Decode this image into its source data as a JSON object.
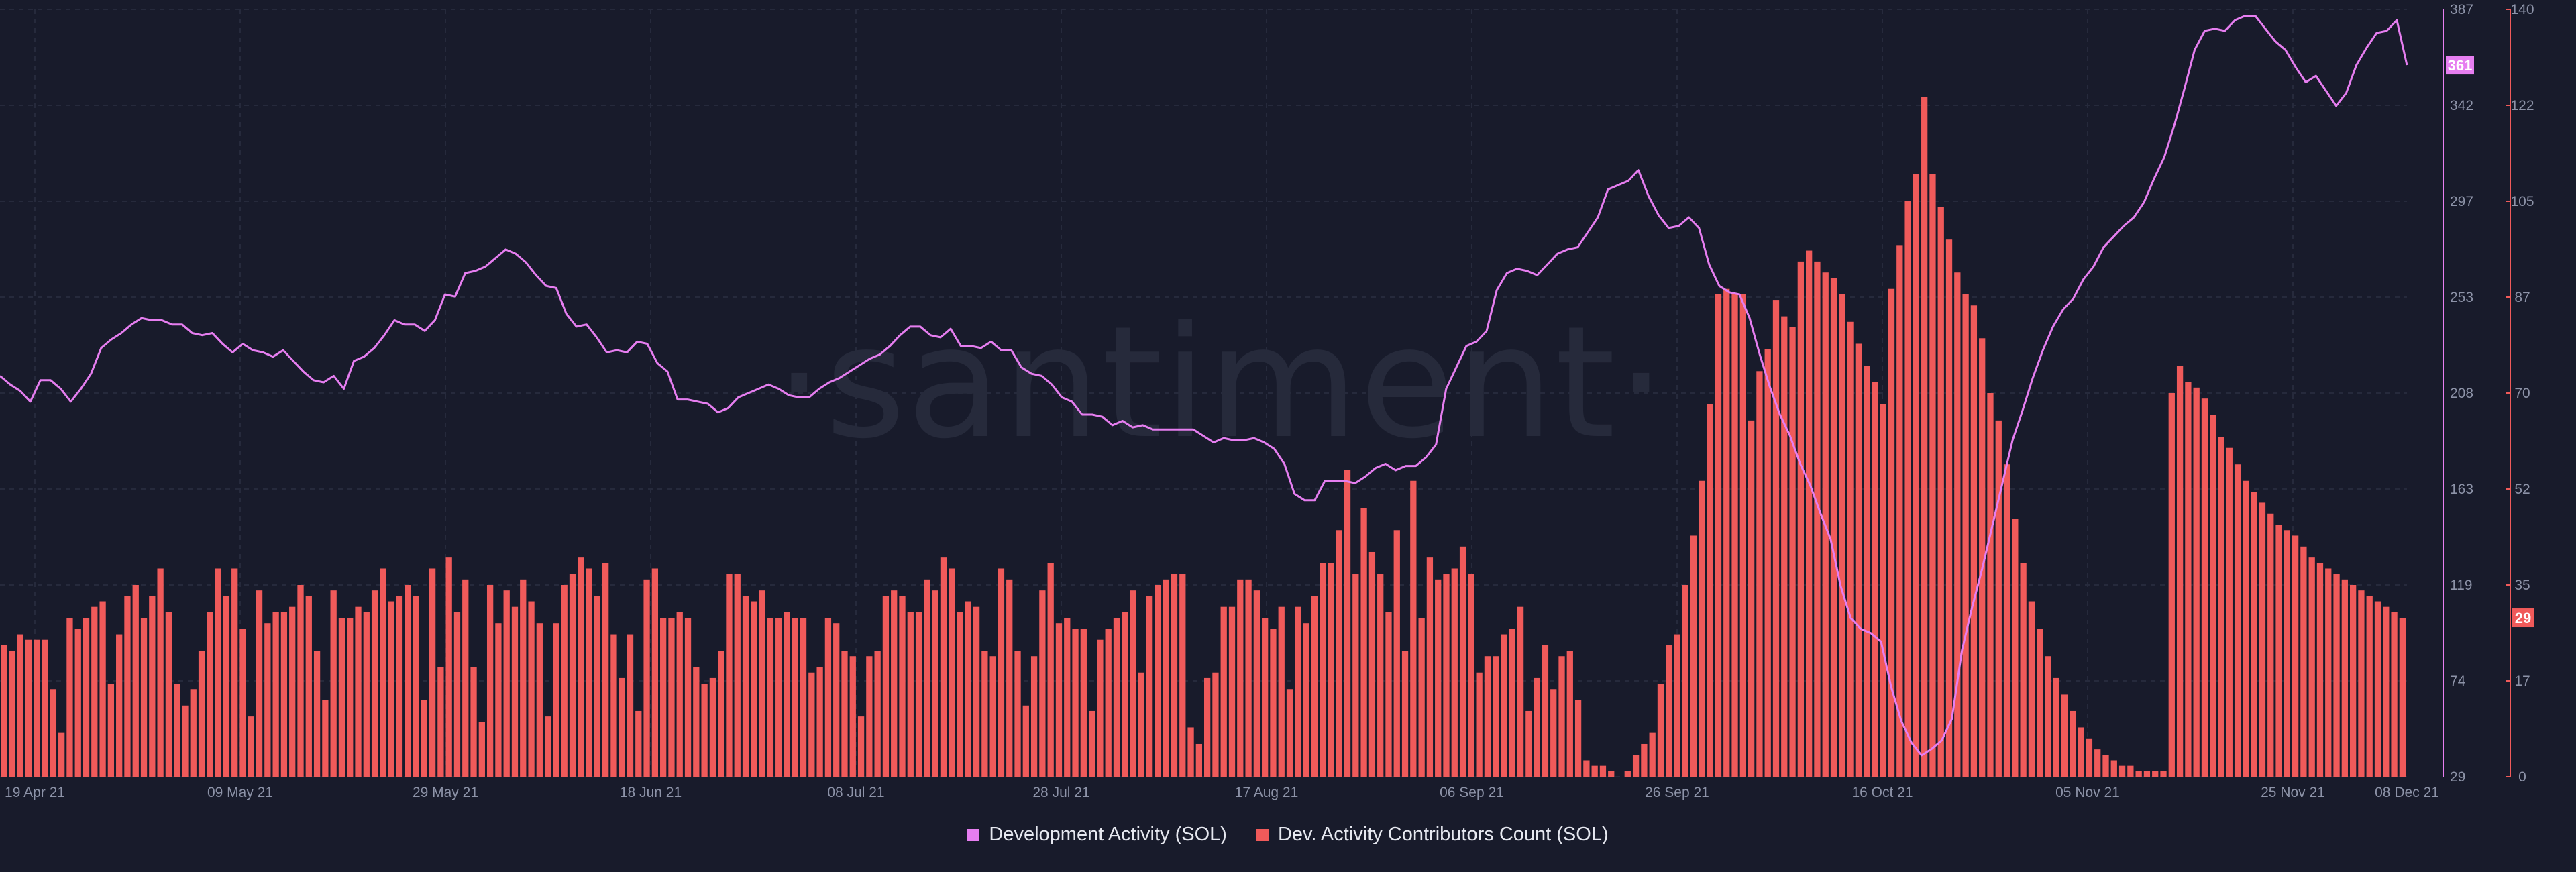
{
  "chart_data": {
    "type": "bar",
    "watermark": "·santiment·",
    "x_tick_labels": [
      "19 Apr 21",
      "09 May 21",
      "29 May 21",
      "18 Jun 21",
      "08 Jul 21",
      "28 Jul 21",
      "17 Aug 21",
      "06 Sep 21",
      "26 Sep 21",
      "16 Oct 21",
      "05 Nov 21",
      "25 Nov 21",
      "08 Dec 21"
    ],
    "left_axis_ticks": [
      "387",
      "342",
      "297",
      "253",
      "208",
      "163",
      "119",
      "74",
      "29"
    ],
    "right_axis_ticks": [
      "140",
      "122",
      "105",
      "87",
      "70",
      "52",
      "35",
      "17",
      "0"
    ],
    "left_axis_range": [
      29,
      387
    ],
    "right_axis_range": [
      0,
      140
    ],
    "series": [
      {
        "name": "Development Activity (SOL)",
        "axis": "left",
        "style": "line",
        "color": "#e67ef0",
        "last_value_label": "361",
        "values": [
          216,
          212,
          209,
          204,
          214,
          214,
          210,
          204,
          210,
          217,
          229,
          233,
          236,
          240,
          243,
          242,
          242,
          240,
          240,
          236,
          235,
          236,
          231,
          227,
          231,
          228,
          227,
          225,
          228,
          223,
          218,
          214,
          213,
          216,
          210,
          223,
          225,
          229,
          235,
          242,
          240,
          240,
          237,
          242,
          254,
          253,
          264,
          265,
          267,
          271,
          275,
          273,
          269,
          263,
          258,
          257,
          245,
          239,
          240,
          234,
          227,
          228,
          227,
          232,
          231,
          222,
          218,
          205,
          205,
          204,
          203,
          199,
          201,
          206,
          208,
          210,
          212,
          210,
          207,
          206,
          206,
          210,
          213,
          215,
          218,
          221,
          224,
          226,
          230,
          235,
          239,
          239,
          235,
          234,
          238,
          230,
          230,
          229,
          232,
          228,
          228,
          220,
          217,
          216,
          212,
          206,
          204,
          198,
          198,
          197,
          193,
          195,
          192,
          193,
          191,
          191,
          191,
          191,
          191,
          188,
          185,
          187,
          186,
          186,
          187,
          185,
          182,
          175,
          161,
          158,
          158,
          167,
          167,
          167,
          166,
          169,
          173,
          175,
          172,
          174,
          174,
          178,
          184,
          210,
          220,
          230,
          232,
          237,
          256,
          264,
          266,
          265,
          263,
          268,
          273,
          275,
          276,
          283,
          290,
          303,
          305,
          307,
          312,
          300,
          291,
          285,
          286,
          290,
          285,
          268,
          258,
          255,
          254,
          243,
          226,
          211,
          198,
          188,
          175,
          165,
          152,
          140,
          118,
          103,
          98,
          96,
          92,
          71,
          55,
          45,
          39,
          42,
          46,
          56,
          88,
          108,
          126,
          146,
          166,
          186,
          200,
          215,
          228,
          239,
          247,
          252,
          261,
          267,
          276,
          281,
          286,
          290,
          297,
          308,
          318,
          333,
          350,
          368,
          377,
          378,
          377,
          382,
          384,
          384,
          378,
          372,
          368,
          360,
          353,
          356,
          349,
          342,
          348,
          361,
          369,
          376,
          377,
          382,
          361
        ]
      },
      {
        "name": "Dev. Activity Contributors Count (SOL)",
        "axis": "right",
        "style": "bar",
        "color": "#f05a5a",
        "last_value_label": "29",
        "values": [
          24,
          23,
          26,
          25,
          25,
          25,
          16,
          8,
          29,
          27,
          29,
          31,
          32,
          17,
          26,
          33,
          35,
          29,
          33,
          38,
          30,
          17,
          13,
          16,
          23,
          30,
          38,
          33,
          38,
          27,
          11,
          34,
          28,
          30,
          30,
          31,
          35,
          33,
          23,
          14,
          34,
          29,
          29,
          31,
          30,
          34,
          38,
          32,
          33,
          35,
          33,
          14,
          38,
          20,
          40,
          30,
          36,
          20,
          10,
          35,
          28,
          34,
          31,
          36,
          32,
          28,
          11,
          28,
          35,
          37,
          40,
          38,
          33,
          39,
          26,
          18,
          26,
          12,
          36,
          38,
          29,
          29,
          30,
          29,
          20,
          17,
          18,
          23,
          37,
          37,
          33,
          32,
          34,
          29,
          29,
          30,
          29,
          29,
          19,
          20,
          29,
          28,
          23,
          22,
          11,
          22,
          23,
          33,
          34,
          33,
          30,
          30,
          36,
          34,
          40,
          38,
          30,
          32,
          31,
          23,
          22,
          38,
          36,
          23,
          13,
          22,
          34,
          39,
          28,
          29,
          27,
          27,
          12,
          25,
          27,
          29,
          30,
          34,
          19,
          33,
          35,
          36,
          37,
          37,
          9,
          6,
          18,
          19,
          31,
          31,
          36,
          36,
          34,
          29,
          27,
          31,
          16,
          31,
          28,
          33,
          39,
          39,
          45,
          56,
          37,
          49,
          41,
          37,
          30,
          45,
          23,
          54,
          29,
          40,
          36,
          37,
          38,
          42,
          37,
          19,
          22,
          22,
          26,
          27,
          31,
          12,
          18,
          24,
          16,
          22,
          23,
          14,
          3,
          2,
          2,
          1,
          0,
          1,
          4,
          6,
          8,
          17,
          24,
          26,
          35,
          44,
          54,
          68,
          88,
          89,
          88,
          88,
          65,
          74,
          78,
          87,
          84,
          82,
          94,
          96,
          94,
          92,
          91,
          88,
          83,
          79,
          75,
          72,
          68,
          89,
          97,
          105,
          110,
          124,
          110,
          104,
          98,
          92,
          88,
          86,
          80,
          70,
          65,
          57,
          47,
          39,
          32,
          27,
          22,
          18,
          15,
          12,
          9,
          7,
          5,
          4,
          3,
          2,
          2,
          1,
          1,
          1,
          1,
          70,
          75,
          72,
          71,
          69,
          66,
          62,
          60,
          57,
          54,
          52,
          50,
          48,
          46,
          45,
          44,
          42,
          40,
          39,
          38,
          37,
          36,
          35,
          34,
          33,
          32,
          31,
          30,
          29
        ]
      }
    ],
    "legend": [
      {
        "label": "Development Activity (SOL)",
        "color": "#e67ef0"
      },
      {
        "label": "Dev. Activity Contributors Count (SOL)",
        "color": "#f05a5a"
      }
    ]
  }
}
